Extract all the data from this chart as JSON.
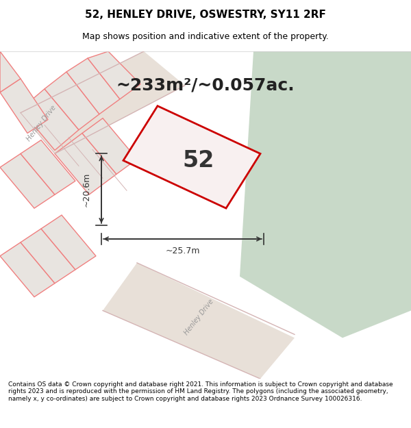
{
  "title": "52, HENLEY DRIVE, OSWESTRY, SY11 2RF",
  "subtitle": "Map shows position and indicative extent of the property.",
  "area_text": "~233m²/~0.057ac.",
  "house_number": "52",
  "dim1_label": "~20.6m",
  "dim2_label": "~25.7m",
  "footer": "Contains OS data © Crown copyright and database right 2021. This information is subject to Crown copyright and database rights 2023 and is reproduced with the permission of HM Land Registry. The polygons (including the associated geometry, namely x, y co-ordinates) are subject to Crown copyright and database rights 2023 Ordnance Survey 100026316.",
  "bg_color": "#f0eeea",
  "map_bg": "#f0eeea",
  "green_area_color": "#c8d9c8",
  "road_color": "#f0eeea",
  "plot_outline_color": "#cc0000",
  "plot_fill_color": "#f5f0f0",
  "neighbor_outline_color": "#f08080",
  "neighbor_fill_color": "#e8e4e0",
  "road_line_color": "#d0a0a0",
  "title_fontsize": 11,
  "subtitle_fontsize": 9,
  "area_fontsize": 18,
  "house_fontsize": 24,
  "dim_fontsize": 9,
  "footer_fontsize": 6.5
}
